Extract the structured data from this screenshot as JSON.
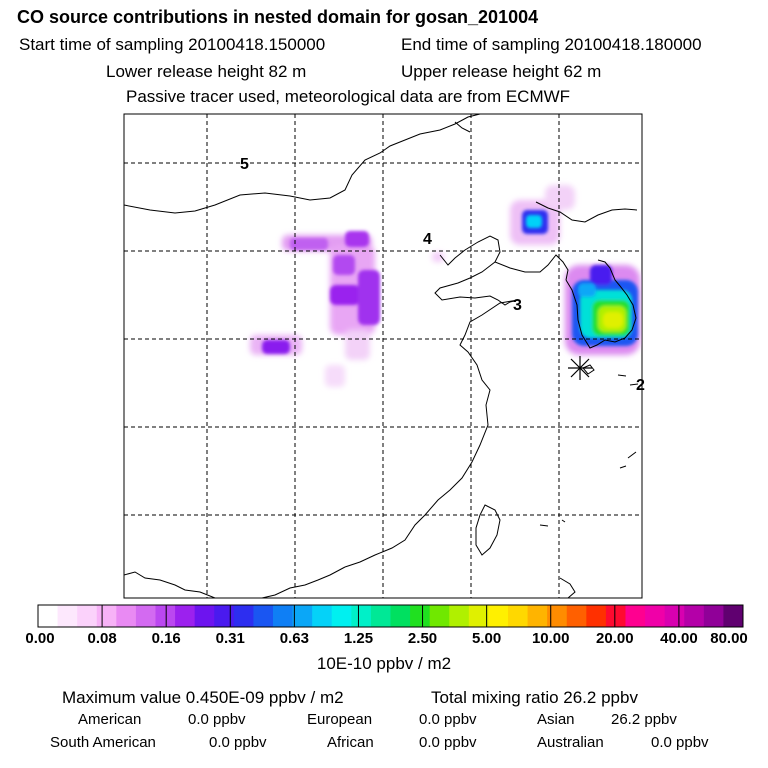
{
  "header": {
    "title": "CO  source contributions in nested domain for gosan_201004",
    "start_time": "Start time of sampling 20100418.150000",
    "end_time": "End time of sampling 20100418.180000",
    "lower_height": "Lower release height   82 m",
    "upper_height": "Upper release height   62 m",
    "note": "Passive tracer used, meteorological data are from ECMWF"
  },
  "map": {
    "region_labels": [
      "5",
      "4",
      "3",
      "2"
    ],
    "receptor_marker": "asterisk-icon"
  },
  "colorbar": {
    "tick_labels": [
      "0.00",
      "0.08",
      "0.16",
      "0.31",
      "0.63",
      "1.25",
      "2.50",
      "5.00",
      "10.00",
      "20.00",
      "40.00",
      "80.00"
    ],
    "colors": [
      "#ffffff",
      "#fde8fd",
      "#fbd2fb",
      "#f7b2f7",
      "#e98af3",
      "#d36af1",
      "#bb47f0",
      "#9c21ee",
      "#6d14ef",
      "#4a1aef",
      "#2d2ef0",
      "#1a56f2",
      "#0f7ff5",
      "#0ba7f7",
      "#05d2f8",
      "#00f0f0",
      "#00f0c8",
      "#00e896",
      "#00e060",
      "#20e020",
      "#70e800",
      "#b0f000",
      "#e0f000",
      "#fff000",
      "#ffd800",
      "#ffb400",
      "#ff8c00",
      "#ff6000",
      "#ff3000",
      "#ff0a30",
      "#ff0090",
      "#f000a8",
      "#d800b0",
      "#b400a8",
      "#900098",
      "#600070"
    ],
    "units": "10E-10 ppbv / m2"
  },
  "stats": {
    "max_value": "Maximum value  0.450E-09 ppbv / m2",
    "total_mixing": "Total mixing ratio      26.2 ppbv",
    "american_label": "American",
    "american_val": "0.0 ppbv",
    "european_label": "European",
    "european_val": "0.0 ppbv",
    "asian_label": "Asian",
    "asian_val": "26.2 ppbv",
    "south_american_label": "South American",
    "south_american_val": "0.0 ppbv",
    "african_label": "African",
    "african_val": "0.0 ppbv",
    "australian_label": "Australian",
    "australian_val": "0.0 ppbv"
  }
}
